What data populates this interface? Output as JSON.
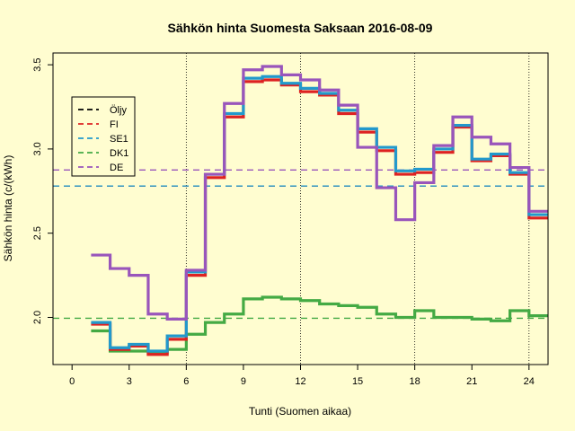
{
  "chart_data": {
    "type": "line",
    "title": "Sähkön hinta Suomesta Saksaan 2016-08-09",
    "xlabel": "Tunti (Suomen aikaa)",
    "ylabel": "Sähkön hinta (c/(kWh)",
    "xlim": [
      -1,
      25
    ],
    "ylim": [
      1.72,
      3.57
    ],
    "x_ticks": [
      0,
      3,
      6,
      9,
      12,
      15,
      18,
      21,
      24
    ],
    "x_tick_labels": [
      "0",
      "3",
      "6",
      "9",
      "12",
      "15",
      "18",
      "21",
      "24"
    ],
    "y_ticks": [
      2.0,
      2.5,
      3.0,
      3.5
    ],
    "y_tick_labels": [
      "2.0",
      "2.5",
      "3.0",
      "3.5"
    ],
    "vertical_gridlines": [
      6,
      12,
      18,
      24
    ],
    "legend_position": "top-left",
    "hours": [
      1,
      2,
      3,
      4,
      5,
      6,
      7,
      8,
      9,
      10,
      11,
      12,
      13,
      14,
      15,
      16,
      17,
      18,
      19,
      20,
      21,
      22,
      23,
      24,
      25
    ],
    "series": [
      {
        "name": "Öljy",
        "color": "#000000",
        "style": "dashed",
        "values": []
      },
      {
        "name": "FI",
        "color": "#DD2222",
        "style": "dashed",
        "average": 2.78,
        "values": [
          1.96,
          1.81,
          1.83,
          1.78,
          1.87,
          2.25,
          2.83,
          3.19,
          3.4,
          3.41,
          3.38,
          3.34,
          3.32,
          3.21,
          3.1,
          2.99,
          2.85,
          2.86,
          2.98,
          3.13,
          2.93,
          2.96,
          2.85,
          2.59,
          2.59
        ]
      },
      {
        "name": "SE1",
        "color": "#2299CC",
        "style": "dashed",
        "values": []
      },
      {
        "name": "DK1",
        "color": "#44AA44",
        "style": "dashed",
        "average": 1.995,
        "values": [
          1.92,
          1.8,
          1.8,
          1.79,
          1.81,
          1.9,
          1.97,
          2.02,
          2.11,
          2.12,
          2.11,
          2.1,
          2.08,
          2.07,
          2.06,
          2.02,
          2.0,
          2.04,
          2.0,
          2.0,
          1.99,
          1.98,
          2.04,
          2.01,
          2.01
        ]
      },
      {
        "name": "DE",
        "color": "#9955BB",
        "style": "dashed",
        "average": 2.875,
        "values": [
          2.37,
          2.29,
          2.25,
          2.02,
          1.99,
          2.28,
          2.85,
          3.27,
          3.47,
          3.49,
          3.44,
          3.41,
          3.35,
          3.26,
          3.01,
          2.77,
          2.58,
          2.8,
          3.02,
          3.19,
          3.07,
          3.03,
          2.89,
          2.63,
          2.63
        ]
      }
    ],
    "se1_values": [
      1.97,
      1.82,
      1.84,
      1.8,
      1.89,
      2.27,
      2.85,
      3.21,
      3.42,
      3.43,
      3.39,
      3.36,
      3.33,
      3.23,
      3.12,
      3.01,
      2.87,
      2.88,
      3.0,
      3.14,
      2.94,
      2.97,
      2.86,
      2.61,
      2.61
    ],
    "se1_average": 2.78
  }
}
